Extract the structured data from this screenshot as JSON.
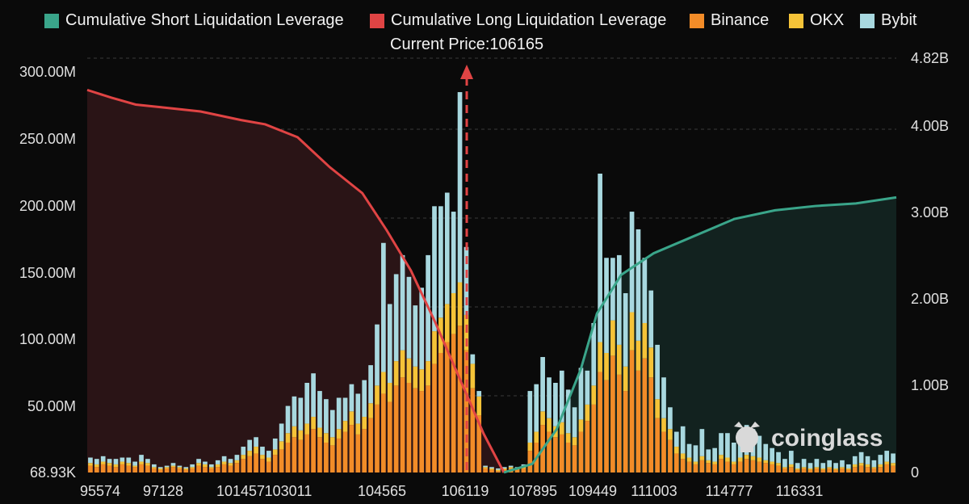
{
  "legend": {
    "short": "Cumulative Short Liquidation Leverage",
    "long": "Cumulative Long Liquidation Leverage",
    "binance": "Binance",
    "okx": "OKX",
    "bybit": "Bybit",
    "current_price": "Current Price:106165"
  },
  "colors": {
    "short": "#3aa58a",
    "long": "#e04444",
    "binance": "#f28c28",
    "okx": "#f5c338",
    "bybit": "#a8d8df"
  },
  "watermark": "coinglass",
  "chart_data": {
    "type": "bar",
    "y_left_ticks": [
      "68.93K",
      "50.00M",
      "100.00M",
      "150.00M",
      "200.00M",
      "250.00M",
      "300.00M"
    ],
    "y_right_ticks": [
      "0",
      "1.00B",
      "2.00B",
      "3.00B",
      "4.00B",
      "4.82B"
    ],
    "x_ticks": [
      "95574",
      "97128",
      "101457",
      "103011",
      "104565",
      "106119",
      "107895",
      "109449",
      "111003",
      "114777",
      "116331"
    ],
    "ylim_left": [
      0,
      305
    ],
    "ylim_right": [
      0,
      4.82
    ],
    "current_price": 106165,
    "bars": {
      "series": [
        "Binance",
        "OKX",
        "Bybit"
      ],
      "values": [
        [
          5,
          2,
          4
        ],
        [
          4,
          2,
          4
        ],
        [
          6,
          2,
          4
        ],
        [
          5,
          2,
          3
        ],
        [
          4,
          2,
          4
        ],
        [
          6,
          2,
          3
        ],
        [
          5,
          2,
          4
        ],
        [
          4,
          1,
          3
        ],
        [
          6,
          2,
          5
        ],
        [
          5,
          2,
          3
        ],
        [
          3,
          1,
          2
        ],
        [
          2,
          1,
          1
        ],
        [
          3,
          1,
          1
        ],
        [
          4,
          1,
          2
        ],
        [
          3,
          1,
          1
        ],
        [
          2,
          1,
          1
        ],
        [
          3,
          1,
          2
        ],
        [
          5,
          2,
          3
        ],
        [
          4,
          2,
          2
        ],
        [
          3,
          1,
          2
        ],
        [
          4,
          2,
          3
        ],
        [
          6,
          2,
          4
        ],
        [
          5,
          2,
          3
        ],
        [
          7,
          2,
          4
        ],
        [
          10,
          3,
          6
        ],
        [
          12,
          4,
          8
        ],
        [
          14,
          5,
          7
        ],
        [
          10,
          3,
          6
        ],
        [
          8,
          3,
          5
        ],
        [
          13,
          4,
          8
        ],
        [
          17,
          6,
          13
        ],
        [
          22,
          7,
          20
        ],
        [
          26,
          8,
          22
        ],
        [
          24,
          7,
          24
        ],
        [
          28,
          8,
          30
        ],
        [
          32,
          9,
          32
        ],
        [
          26,
          7,
          27
        ],
        [
          22,
          7,
          25
        ],
        [
          20,
          6,
          20
        ],
        [
          25,
          7,
          23
        ],
        [
          30,
          8,
          17
        ],
        [
          35,
          10,
          20
        ],
        [
          28,
          8,
          22
        ],
        [
          32,
          9,
          27
        ],
        [
          40,
          11,
          28
        ],
        [
          50,
          14,
          45
        ],
        [
          58,
          16,
          95
        ],
        [
          52,
          14,
          58
        ],
        [
          64,
          18,
          64
        ],
        [
          70,
          20,
          70
        ],
        [
          66,
          18,
          60
        ],
        [
          62,
          16,
          45
        ],
        [
          60,
          16,
          60
        ],
        [
          64,
          18,
          78
        ],
        [
          80,
          24,
          92
        ],
        [
          88,
          26,
          82
        ],
        [
          96,
          28,
          82
        ],
        [
          102,
          30,
          60
        ],
        [
          108,
          32,
          140
        ],
        [
          90,
          26,
          50
        ],
        [
          62,
          18,
          7
        ],
        [
          42,
          14,
          4
        ],
        [
          3,
          1,
          1
        ],
        [
          2,
          1,
          1
        ],
        [
          1,
          1,
          1
        ],
        [
          2,
          1,
          1
        ],
        [
          3,
          1,
          1
        ],
        [
          2,
          1,
          1
        ],
        [
          3,
          1,
          2
        ],
        [
          16,
          6,
          38
        ],
        [
          22,
          8,
          35
        ],
        [
          35,
          10,
          40
        ],
        [
          30,
          10,
          30
        ],
        [
          26,
          8,
          32
        ],
        [
          28,
          9,
          38
        ],
        [
          22,
          7,
          32
        ],
        [
          20,
          6,
          22
        ],
        [
          30,
          9,
          38
        ],
        [
          38,
          12,
          25
        ],
        [
          50,
          14,
          46
        ],
        [
          74,
          22,
          124
        ],
        [
          68,
          20,
          70
        ],
        [
          86,
          26,
          46
        ],
        [
          72,
          22,
          66
        ],
        [
          60,
          18,
          54
        ],
        [
          90,
          28,
          74
        ],
        [
          75,
          22,
          82
        ],
        [
          84,
          26,
          48
        ],
        [
          70,
          22,
          42
        ],
        [
          40,
          14,
          40
        ],
        [
          30,
          10,
          30
        ],
        [
          24,
          8,
          16
        ],
        [
          14,
          5,
          11
        ],
        [
          10,
          4,
          20
        ],
        [
          8,
          3,
          10
        ],
        [
          6,
          2,
          12
        ],
        [
          9,
          3,
          20
        ],
        [
          7,
          2,
          8
        ],
        [
          6,
          2,
          10
        ],
        [
          10,
          3,
          16
        ],
        [
          8,
          3,
          18
        ],
        [
          6,
          2,
          14
        ],
        [
          8,
          3,
          18
        ],
        [
          10,
          3,
          22
        ],
        [
          9,
          3,
          20
        ],
        [
          8,
          3,
          16
        ],
        [
          7,
          2,
          12
        ],
        [
          6,
          2,
          10
        ],
        [
          5,
          2,
          8
        ],
        [
          3,
          1,
          6
        ],
        [
          4,
          2,
          10
        ],
        [
          2,
          1,
          4
        ],
        [
          3,
          1,
          6
        ],
        [
          2,
          1,
          4
        ],
        [
          3,
          1,
          6
        ],
        [
          2,
          1,
          4
        ],
        [
          3,
          1,
          5
        ],
        [
          2,
          1,
          4
        ],
        [
          3,
          1,
          5
        ],
        [
          2,
          1,
          3
        ],
        [
          4,
          2,
          6
        ],
        [
          5,
          2,
          8
        ],
        [
          4,
          2,
          6
        ],
        [
          3,
          1,
          5
        ],
        [
          4,
          2,
          7
        ],
        [
          6,
          2,
          8
        ],
        [
          5,
          2,
          7
        ]
      ]
    },
    "long_line": [
      [
        0,
        4.45
      ],
      [
        0.03,
        4.36
      ],
      [
        0.06,
        4.28
      ],
      [
        0.09,
        4.25
      ],
      [
        0.14,
        4.2
      ],
      [
        0.19,
        4.1
      ],
      [
        0.22,
        4.05
      ],
      [
        0.26,
        3.9
      ],
      [
        0.3,
        3.55
      ],
      [
        0.34,
        3.25
      ],
      [
        0.37,
        2.82
      ],
      [
        0.4,
        2.35
      ],
      [
        0.43,
        1.75
      ],
      [
        0.46,
        1.1
      ],
      [
        0.49,
        0.45
      ],
      [
        0.515,
        0
      ]
    ],
    "short_line": [
      [
        0.515,
        0
      ],
      [
        0.55,
        0.1
      ],
      [
        0.58,
        0.5
      ],
      [
        0.61,
        1.2
      ],
      [
        0.63,
        1.85
      ],
      [
        0.66,
        2.3
      ],
      [
        0.7,
        2.55
      ],
      [
        0.75,
        2.75
      ],
      [
        0.8,
        2.95
      ],
      [
        0.85,
        3.05
      ],
      [
        0.9,
        3.1
      ],
      [
        0.95,
        3.13
      ],
      [
        1.0,
        3.2
      ]
    ]
  }
}
